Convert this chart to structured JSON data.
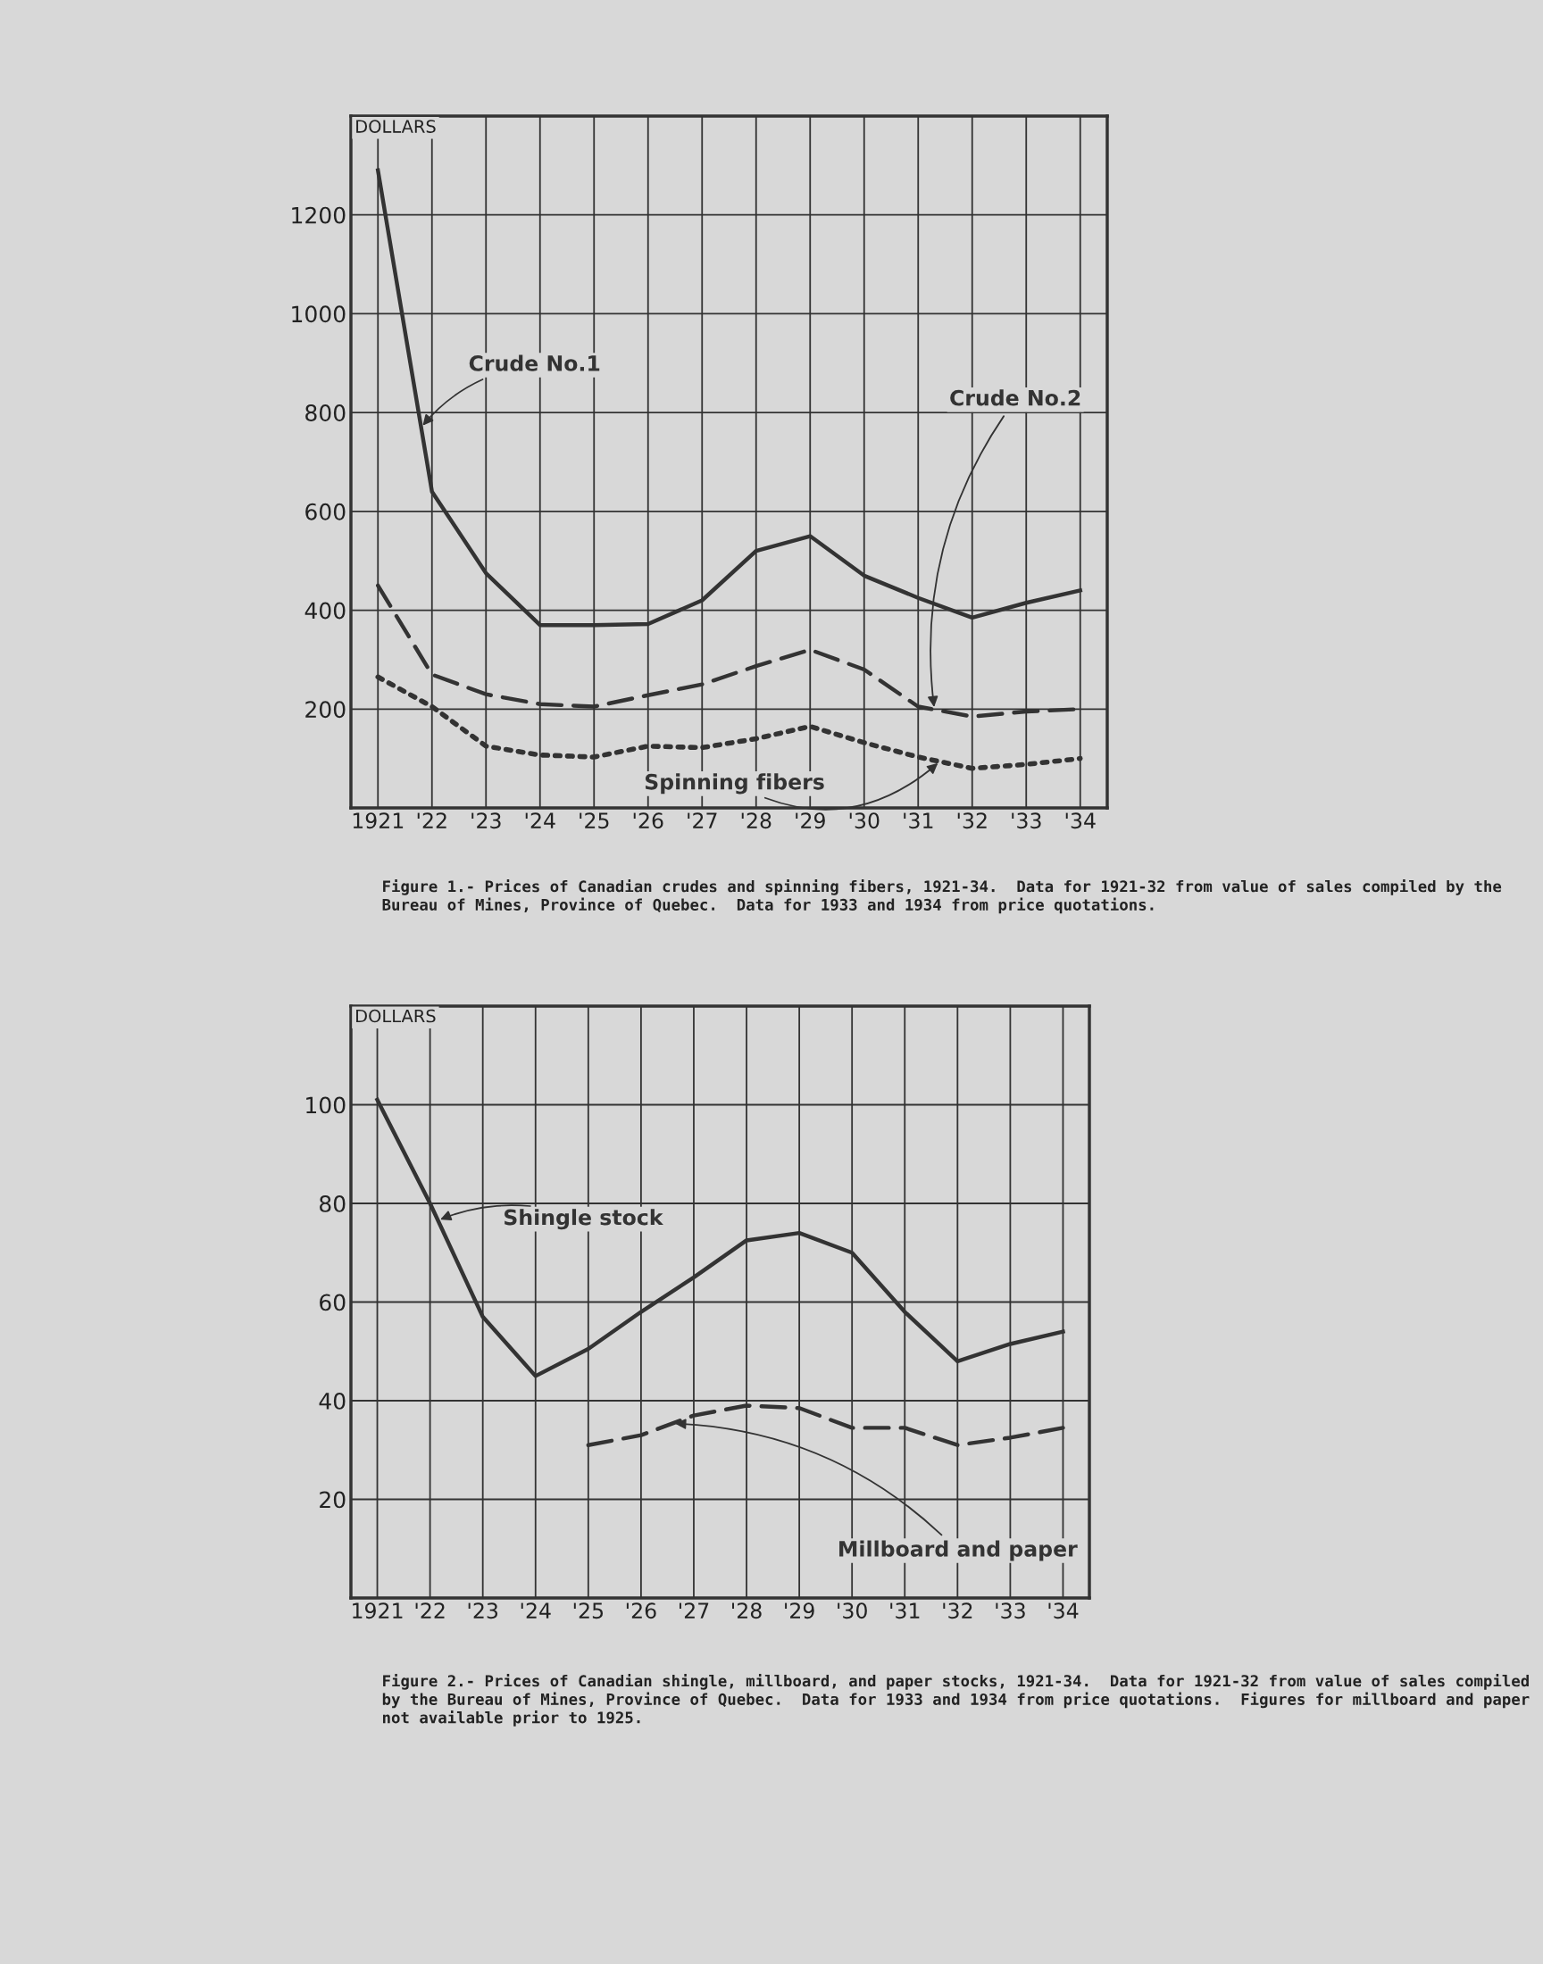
{
  "chart_data": [
    {
      "type": "line",
      "title": "Figure 1.- Prices of Canadian crudes and spinning fibers, 1921-34.  Data for 1921-32 from value of sales compiled by the Bureau of Mines, Province of Quebec.  Data for 1933 and 1934 from price quotations.",
      "ylabel": "DOLLARS",
      "categories": [
        "1921",
        "'22",
        "'23",
        "'24",
        "'25",
        "'26",
        "'27",
        "'28",
        "'29",
        "'30",
        "'31",
        "'32",
        "'33",
        "'34"
      ],
      "ylim": [
        0,
        1400
      ],
      "yticks": [
        200,
        400,
        600,
        800,
        1000,
        1200
      ],
      "grid": true,
      "legend": false,
      "series": [
        {
          "name": "Crude No.1",
          "color": "#333333",
          "line_style": "solid",
          "values": [
            1290,
            640,
            475,
            370,
            370,
            372,
            420,
            520,
            550,
            470,
            425,
            385,
            415,
            440
          ]
        },
        {
          "name": "Crude No.2",
          "color": "#333333",
          "line_style": "dashed",
          "values": [
            450,
            270,
            230,
            210,
            205,
            228,
            250,
            287,
            320,
            280,
            205,
            185,
            195,
            200
          ]
        },
        {
          "name": "Spinning fibers",
          "color": "#333333",
          "line_style": "dotted",
          "values": [
            265,
            205,
            125,
            107,
            103,
            125,
            122,
            140,
            165,
            132,
            103,
            80,
            88,
            100
          ]
        }
      ]
    },
    {
      "type": "line",
      "title": "Figure 2.- Prices of Canadian shingle, millboard, and paper stocks, 1921-34.  Data for 1921-32 from value of sales compiled by the Bureau of Mines, Province of Quebec.  Data for 1933 and 1934 from price quotations.  Figures for millboard and paper not available prior to 1925.",
      "ylabel": "DOLLARS",
      "categories": [
        "1921",
        "'22",
        "'23",
        "'24",
        "'25",
        "'26",
        "'27",
        "'28",
        "'29",
        "'30",
        "'31",
        "'32",
        "'33",
        "'34"
      ],
      "ylim": [
        0,
        120
      ],
      "yticks": [
        20,
        40,
        60,
        80,
        100
      ],
      "grid": true,
      "legend": false,
      "series": [
        {
          "name": "Shingle stock",
          "color": "#333333",
          "line_style": "solid",
          "values": [
            101,
            80,
            57,
            45,
            50.5,
            58,
            65,
            72.5,
            74,
            70,
            58,
            48,
            51.5,
            54
          ]
        },
        {
          "name": "Millboard and paper",
          "color": "#333333",
          "line_style": "dashed",
          "values": [
            null,
            null,
            null,
            null,
            31,
            33,
            37,
            39,
            38.5,
            34.5,
            34.5,
            31,
            32.5,
            34.5
          ]
        }
      ]
    }
  ]
}
